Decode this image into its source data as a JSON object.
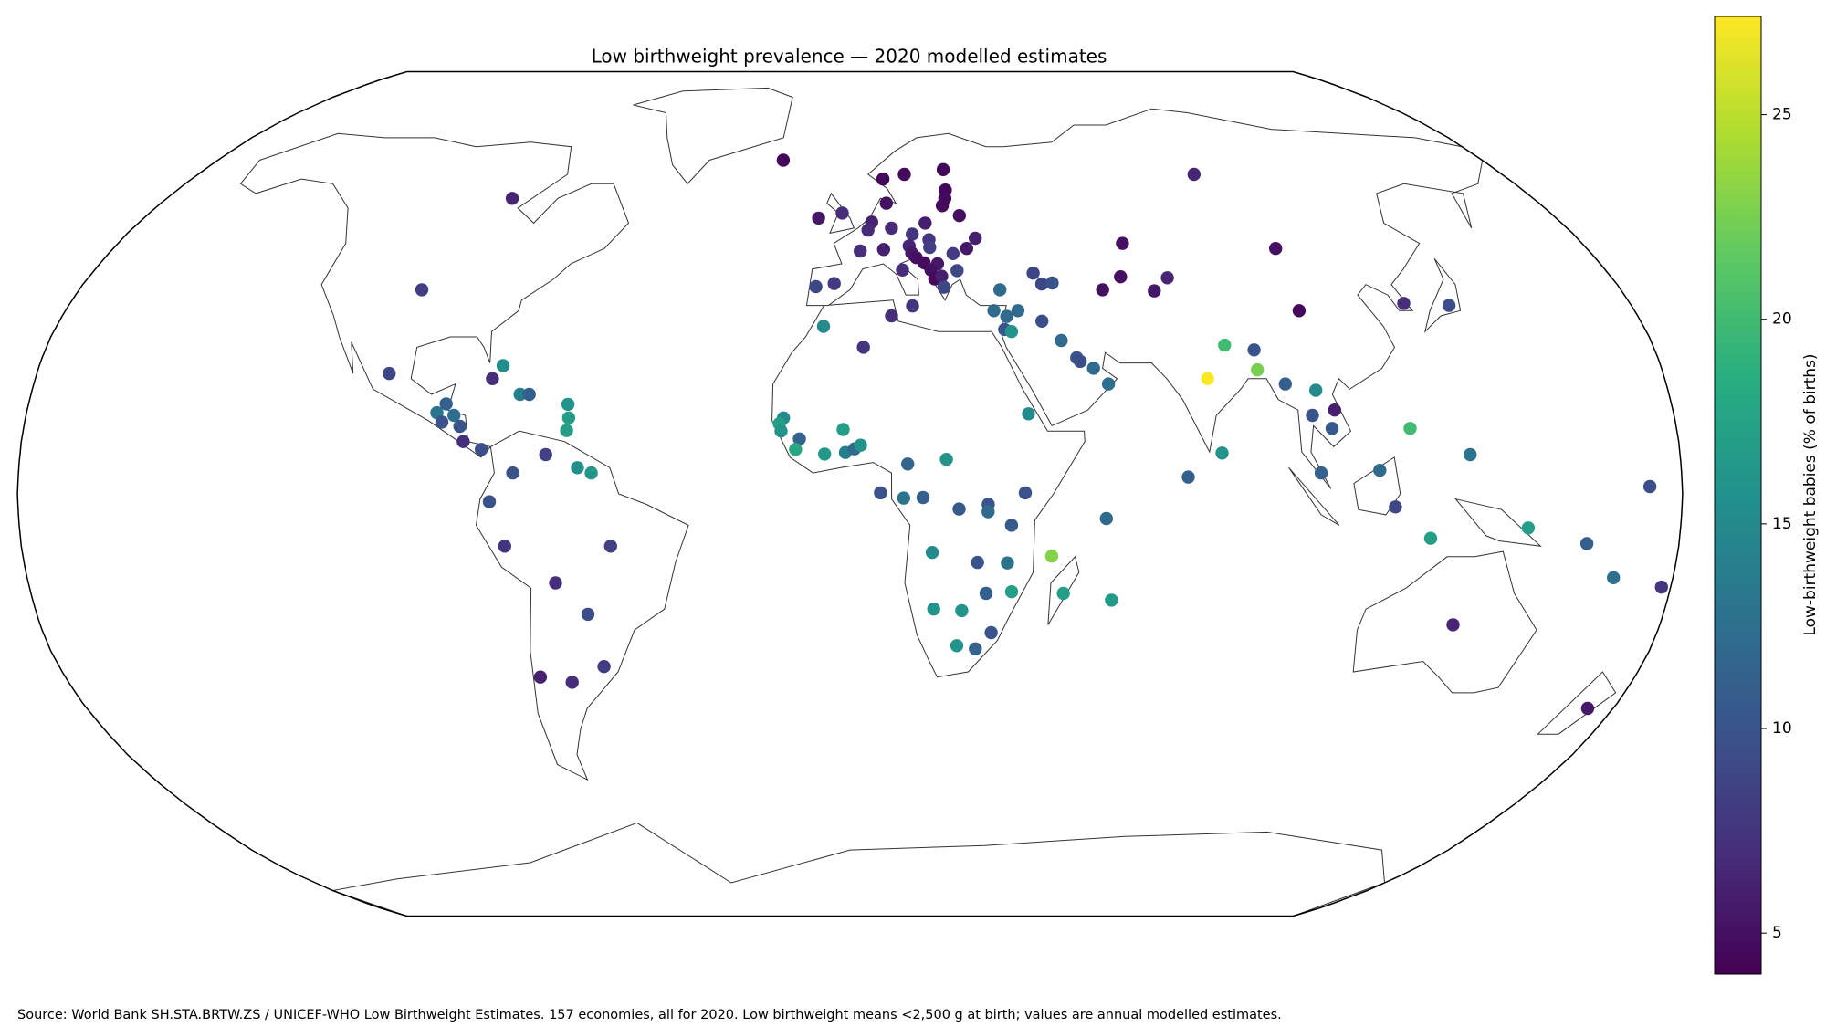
{
  "chart_data": {
    "type": "map",
    "projection": "robinson",
    "title": "Low birthweight prevalence — 2020 modelled estimates",
    "colormap": "viridis",
    "colorbar_label": "Low-birthweight babies (% of births)",
    "clim": [
      4.0,
      27.4
    ],
    "cticks": [
      5,
      10,
      15,
      20,
      25
    ],
    "source": "Source: World Bank SH.STA.BRTW.ZS / UNICEF-WHO Low Birthweight Estimates. 157 economies, all for 2020. Low birthweight means <2,500 g at birth; values are annual modelled estimates.",
    "lon": [
      -89,
      -19,
      -100,
      -102,
      -79,
      -77,
      -72.5,
      -70.5,
      -90.3,
      -88.5,
      -86.5,
      -89,
      -85,
      -84,
      -80,
      -61.8,
      -61.4,
      -61.7,
      -66,
      -59,
      -56,
      -73,
      -78,
      -75,
      -52,
      -64.5,
      -58,
      -71,
      -64,
      -56,
      9,
      15,
      26,
      25.5,
      25,
      24,
      9.5,
      -2,
      -8,
      5.5,
      4.5,
      10.4,
      19,
      28,
      15.5,
      19.5,
      14.5,
      8.2,
      2.5,
      19.5,
      31,
      28.5,
      25,
      15,
      16,
      17.8,
      21,
      19.3,
      20,
      21.7,
      25.5,
      22,
      12.5,
      -3.7,
      -8,
      14.4,
      33,
      35,
      43.5,
      45,
      47.5,
      95,
      67,
      104,
      59,
      64,
      71,
      75,
      103,
      127.8,
      138,
      35.8,
      38.5,
      35,
      36.5,
      43.7,
      47.5,
      50.5,
      51.2,
      54,
      57,
      39,
      -6,
      9.5,
      3,
      -14.5,
      -15.4,
      -15,
      -11,
      -11.8,
      -5.5,
      -1.5,
      -1,
      1,
      2.3,
      12.5,
      6.6,
      11.6,
      15.8,
      20.9,
      23.6,
      29.9,
      29.9,
      37.9,
      35,
      34.3,
      27.8,
      35.5,
      29.9,
      17.9,
      18.5,
      24.7,
      24,
      28.2,
      31.5,
      46.9,
      43.9,
      57.6,
      55.5,
      79,
      84,
      90.4,
      90.3,
      80.7,
      73.2,
      96,
      102.5,
      106,
      101,
      105,
      102,
      114.7,
      122,
      126,
      118,
      134.5,
      147,
      160,
      167,
      178,
      173,
      134,
      174
    ],
    "lat": [
      57,
      65,
      39,
      23,
      22,
      24.5,
      19,
      19,
      15.5,
      17.2,
      15,
      13.7,
      12.9,
      10,
      8.5,
      17.1,
      14.5,
      12.1,
      7.5,
      5,
      4,
      4,
      -1.5,
      -10,
      -10,
      -17,
      -23,
      -35,
      -36,
      -33,
      61,
      62,
      63,
      58.7,
      57,
      55.5,
      56,
      54,
      53,
      52.2,
      50.6,
      51,
      52,
      53.5,
      49.8,
      48.7,
      47.5,
      46.8,
      46.5,
      47.2,
      49,
      47,
      46,
      46.1,
      45.2,
      44.2,
      44,
      42.8,
      41.1,
      41.6,
      42.7,
      39.5,
      42.8,
      40.2,
      39.6,
      35.9,
      35,
      39,
      42.2,
      40.1,
      40.3,
      62,
      48,
      47,
      39,
      41.5,
      38.8,
      41.3,
      35,
      36.4,
      36,
      33.9,
      35,
      31.4,
      31,
      33,
      29.3,
      26,
      25.3,
      24,
      21,
      15.3,
      32,
      34,
      28,
      14.5,
      13.4,
      12,
      10.5,
      8.5,
      7.6,
      12.3,
      7.9,
      8.6,
      9.3,
      5.7,
      0.2,
      -0.8,
      -0.7,
      6.6,
      -2.9,
      -2,
      -3.4,
      0.2,
      -6,
      -13.2,
      -13.1,
      -18.7,
      -19,
      -11.2,
      -22,
      -22.3,
      -29,
      -29.6,
      -26.5,
      -19,
      -11.9,
      -20.3,
      -4.7,
      22,
      28.4,
      27.5,
      23.7,
      7.8,
      3.2,
      21,
      19.8,
      16,
      15,
      12.5,
      4,
      4.5,
      12.5,
      -8.5,
      -2.5,
      7.5,
      -6.5,
      -9.5,
      -16,
      -17.8,
      1.4,
      -25,
      -41
    ],
    "values": [
      6.5,
      4.3,
      8.3,
      9,
      7,
      15.5,
      14,
      11,
      13,
      11,
      12.5,
      10,
      10,
      7,
      9.5,
      16,
      17,
      17,
      8.5,
      15.5,
      16.3,
      10,
      10,
      7.5,
      8.5,
      7,
      9.5,
      6.2,
      7,
      8.2,
      4.5,
      4.5,
      4.3,
      4.3,
      4.5,
      4.6,
      5.1,
      7,
      5.5,
      6.2,
      6.8,
      6.8,
      6,
      5,
      7.5,
      7.5,
      6.5,
      6,
      7.2,
      8.3,
      6,
      5.5,
      8,
      5.5,
      5,
      4.8,
      5.5,
      5,
      4.5,
      6,
      9,
      9,
      7,
      8,
      9,
      7.5,
      12,
      12,
      9,
      9,
      10,
      6.5,
      5,
      5,
      5,
      5,
      5.5,
      6.5,
      4.5,
      7,
      9.5,
      12,
      12,
      10,
      16,
      9.5,
      12,
      10,
      9.5,
      12,
      12.5,
      15,
      15,
      7,
      7.5,
      15,
      17,
      16,
      11.5,
      18,
      16.5,
      17,
      14,
      12,
      16,
      11.5,
      10,
      13,
      11,
      16,
      10.5,
      10,
      12,
      10,
      10.5,
      13,
      10,
      17,
      11,
      15,
      16,
      16,
      16,
      11.5,
      10,
      17,
      23,
      16.5,
      12,
      27.3,
      20,
      10,
      22.5,
      16,
      11,
      11,
      15,
      6,
      10,
      10.5,
      11,
      12,
      20,
      17,
      9,
      13,
      17,
      11,
      12.5,
      7.5,
      9.5,
      6.5,
      5.5
    ]
  }
}
